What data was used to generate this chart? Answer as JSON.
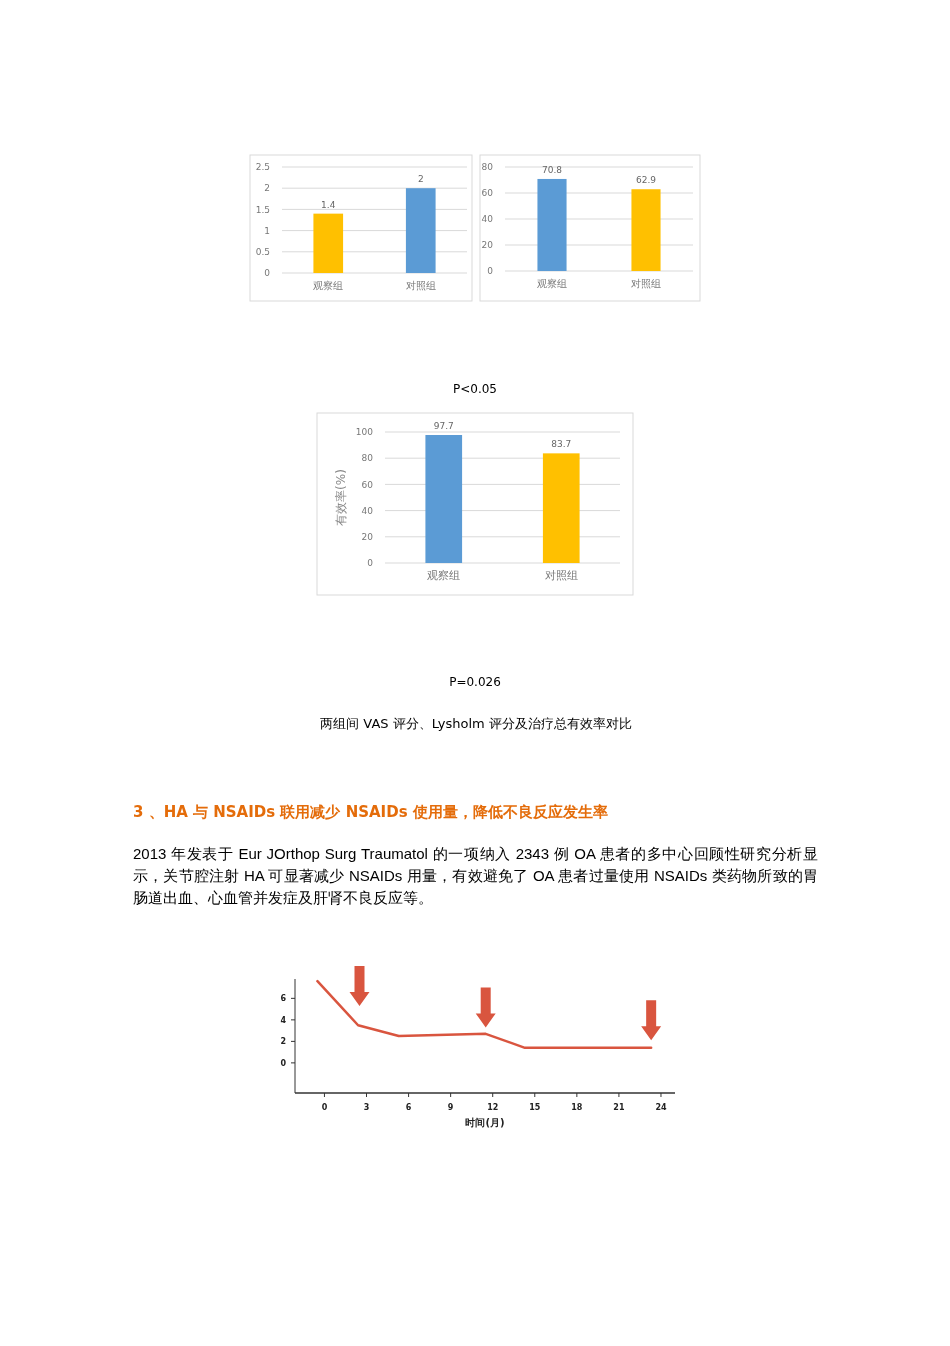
{
  "chart_data": [
    {
      "type": "bar",
      "categories": [
        "观察组",
        "对照组"
      ],
      "values": [
        1.4,
        2
      ],
      "colors": [
        "#ffc000",
        "#5b9bd5"
      ],
      "ylim": [
        0,
        2.5
      ],
      "yticks": [
        0,
        0.5,
        1,
        1.5,
        2,
        2.5
      ],
      "grid": "y",
      "data_labels": true
    },
    {
      "type": "bar",
      "categories": [
        "观察组",
        "对照组"
      ],
      "values": [
        70.8,
        62.9
      ],
      "colors": [
        "#5b9bd5",
        "#ffc000"
      ],
      "ylim": [
        0,
        80
      ],
      "yticks": [
        0,
        20,
        40,
        60,
        80
      ],
      "grid": "y",
      "data_labels": true,
      "annotations": [
        "P<0.05"
      ]
    },
    {
      "type": "bar",
      "categories": [
        "观察组",
        "对照组"
      ],
      "values": [
        97.7,
        83.7
      ],
      "colors": [
        "#5b9bd5",
        "#ffc000"
      ],
      "ylim": [
        0,
        100
      ],
      "yticks": [
        0,
        20,
        40,
        60,
        80,
        100
      ],
      "ylabel": "有效率(%)",
      "grid": "y",
      "data_labels": true,
      "annotations": [
        "P=0.026",
        "两组间 VAS 评分、Lysholm 评分及治疗总有效率对比"
      ]
    },
    {
      "type": "line",
      "title": "3 、HA 与  NSAIDs 联用减少  NSAIDs 使用量，降低不良反应发生率",
      "annotations": [
        "2013 年发表于  Eur JOrthop Surg Traumatol 的一项纳入  2343 例  OA 患者的多中心回顾性研究分析显示，关节腔注射  HA 可显著减少  NSAIDs 用量，有效避免了  OA 患者过量使用 NSAIDs 类药物所致的胃肠道出血、心血管并发症及肝肾不良反应等。"
      ],
      "x": [
        -0.5,
        2.4,
        5.3,
        11.5,
        14.3,
        23.3
      ],
      "values": [
        7.6,
        3.5,
        2.5,
        2.7,
        1.4,
        1.4
      ],
      "color": "#d9553f",
      "xlim": [
        -2.1,
        25
      ],
      "xticks": [
        0,
        3,
        6,
        9,
        12,
        15,
        18,
        21,
        24
      ],
      "ylim": [
        -2.8,
        7.8
      ],
      "yticks": [
        0,
        2,
        4,
        6
      ],
      "xlabel": "时间(月)",
      "grid": false,
      "marker": "none",
      "line_style": "solid"
    }
  ]
}
